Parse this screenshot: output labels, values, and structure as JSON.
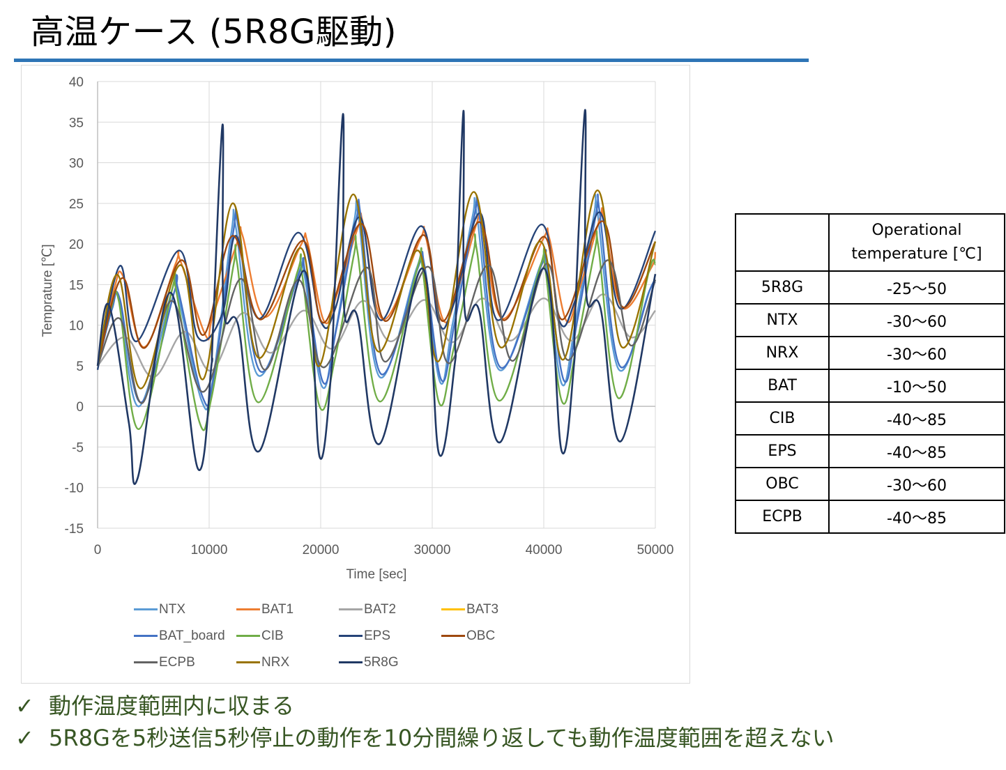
{
  "slide": {
    "title": "高温ケース (5R8G駆動)"
  },
  "chart_data": {
    "type": "line",
    "title": "",
    "xlabel": "Time [sec]",
    "ylabel": "Temprature [℃]",
    "xlim": [
      0,
      50000
    ],
    "ylim": [
      -15,
      40
    ],
    "x_ticks": [
      0,
      10000,
      20000,
      30000,
      40000,
      50000
    ],
    "y_ticks": [
      -15,
      -10,
      -5,
      0,
      5,
      10,
      15,
      20,
      25,
      30,
      35,
      40
    ],
    "grid": true,
    "legend_position": "bottom",
    "series": [
      {
        "name": "NTX",
        "color": "#5b9bd5",
        "x": [
          0,
          1100,
          1900,
          3700,
          6700,
          7100,
          9300,
          10300,
          12000,
          12400,
          14400,
          18000,
          18500,
          20100,
          21300,
          23000,
          23400,
          25300,
          28600,
          29200,
          30700,
          31800,
          33600,
          34000,
          36000,
          39700,
          40200,
          41600,
          42800,
          44500,
          44800,
          46700,
          49400,
          50000
        ],
        "y": [
          5,
          12,
          13.2,
          0,
          14.5,
          14.4,
          0.8,
          3,
          21.5,
          22,
          3.8,
          16.4,
          16.5,
          2.5,
          9,
          22.8,
          23.2,
          3.6,
          17,
          17.5,
          3,
          10,
          23.3,
          23.6,
          4.5,
          17.4,
          17.5,
          2.8,
          10,
          23.6,
          24,
          4.6,
          14,
          15.5
        ]
      },
      {
        "name": "BAT1",
        "color": "#ed7d31",
        "x": [
          0,
          1500,
          2300,
          4200,
          7000,
          7400,
          9700,
          10300,
          12600,
          13000,
          15000,
          18200,
          18800,
          20300,
          21500,
          23400,
          23800,
          25600,
          28900,
          29400,
          31000,
          32300,
          34000,
          34500,
          36300,
          39900,
          40500,
          42000,
          43200,
          45000,
          45400,
          47000,
          49600,
          50000
        ],
        "y": [
          5,
          14.5,
          16,
          7.3,
          17.6,
          18,
          8.7,
          11,
          20.5,
          21,
          11,
          19.8,
          20.3,
          10.5,
          14,
          22.3,
          22.5,
          10.7,
          20.5,
          21,
          10.6,
          14.5,
          22.6,
          22.8,
          10.8,
          20.5,
          20.7,
          10.6,
          14.5,
          23,
          23.2,
          12.2,
          17,
          19
        ]
      },
      {
        "name": "BAT2",
        "color": "#a5a5a5",
        "x": [
          0,
          2500,
          5000,
          7800,
          10200,
          13000,
          15500,
          18500,
          21000,
          23800,
          26300,
          29300,
          31800,
          34500,
          37000,
          40000,
          42500,
          45300,
          47800,
          50000
        ],
        "y": [
          5,
          8.5,
          3.6,
          9.2,
          4.4,
          11.5,
          6.6,
          11.8,
          7.1,
          13,
          8,
          13.1,
          7.9,
          13.3,
          8.1,
          13.3,
          8.1,
          13.8,
          8.5,
          11.8
        ]
      },
      {
        "name": "BAT3",
        "color": "#ffc000",
        "x": [
          0,
          50000
        ],
        "y": [
          null,
          null
        ]
      },
      {
        "name": "BAT_board",
        "color": "#4472c4",
        "x": [
          0,
          1300,
          2000,
          3900,
          6900,
          7200,
          9400,
          10400,
          12200,
          12600,
          14600,
          18100,
          18600,
          20200,
          21400,
          23200,
          23600,
          25400,
          28700,
          29300,
          30800,
          32000,
          33800,
          34200,
          36100,
          39800,
          40300,
          41800,
          43000,
          44700,
          45000,
          46800,
          49500,
          50000
        ],
        "y": [
          5,
          12,
          13.2,
          0.5,
          14.2,
          14.5,
          1.2,
          3.5,
          21.8,
          22.2,
          4.3,
          16.5,
          16.6,
          3,
          9.5,
          23,
          23.4,
          4,
          17,
          17.4,
          3.3,
          10.2,
          23.6,
          23.8,
          4.8,
          17.4,
          17.5,
          3.2,
          10.5,
          23.8,
          24,
          5,
          14.3,
          15.3
        ]
      },
      {
        "name": "CIB",
        "color": "#70ad47",
        "x": [
          0,
          1200,
          1900,
          3700,
          6700,
          7000,
          9100,
          10200,
          12200,
          12500,
          14400,
          17900,
          18300,
          19900,
          21300,
          23000,
          23300,
          25300,
          28700,
          29100,
          30600,
          31900,
          33700,
          34000,
          36000,
          39700,
          40100,
          41600,
          42900,
          44600,
          44900,
          46700,
          49400,
          50000
        ],
        "y": [
          5,
          12,
          13,
          -2.8,
          14.5,
          14.6,
          -1.8,
          1,
          17.5,
          17.7,
          0.5,
          16.5,
          16.6,
          0,
          6,
          18.8,
          19,
          0.6,
          17.2,
          17.3,
          0.5,
          7,
          19,
          19.2,
          0.7,
          17.3,
          17.4,
          0.7,
          7.2,
          19.4,
          19.6,
          1,
          16.5,
          17.5
        ]
      },
      {
        "name": "EPS",
        "color": "#264478",
        "x": [
          0,
          2000,
          3500,
          7300,
          9000,
          11200,
          12400,
          14500,
          18000,
          20000,
          21300,
          23500,
          25400,
          29000,
          30600,
          31900,
          34300,
          35900,
          39800,
          41400,
          42800,
          45000,
          46900,
          50000
        ],
        "y": [
          4.5,
          17.3,
          8,
          19.2,
          8.5,
          11.5,
          21,
          10.8,
          21.4,
          10.5,
          12,
          23.3,
          10.6,
          22.2,
          10.3,
          12.5,
          23.8,
          10.6,
          22.4,
          10.5,
          13,
          23.9,
          12,
          21.6
        ]
      },
      {
        "name": "OBC",
        "color": "#9e480e",
        "x": [
          0,
          2200,
          4200,
          7500,
          9500,
          12100,
          14600,
          18400,
          20300,
          23600,
          25800,
          29200,
          31000,
          34200,
          36400,
          40000,
          41700,
          45200,
          47100,
          50000
        ],
        "y": [
          5,
          15.8,
          7.2,
          18,
          8.8,
          21,
          10.7,
          20.4,
          10.3,
          22.5,
          10.5,
          21.1,
          10.5,
          22.7,
          10.6,
          20.9,
          10.7,
          22.8,
          12.2,
          20.3
        ]
      },
      {
        "name": "ECPB",
        "color": "#636363",
        "x": [
          0,
          2000,
          4000,
          6600,
          9500,
          12800,
          15000,
          18000,
          20300,
          24100,
          25800,
          29600,
          31500,
          35000,
          37200,
          40300,
          42200,
          45700,
          47800,
          50000
        ],
        "y": [
          5,
          10.8,
          0.4,
          13,
          1.8,
          15.7,
          4.5,
          15.6,
          4.8,
          17.1,
          5.5,
          17.2,
          5.3,
          17.4,
          5.6,
          17.6,
          5.7,
          18,
          7.5,
          15.6
        ]
      },
      {
        "name": "NRX",
        "color": "#997300",
        "x": [
          0,
          1800,
          3900,
          7400,
          9500,
          12100,
          14400,
          18200,
          19900,
          22900,
          25100,
          28700,
          30600,
          33700,
          36100,
          39700,
          41800,
          44800,
          47000,
          50000
        ],
        "y": [
          5,
          16.2,
          2.2,
          17.4,
          3.4,
          25,
          6,
          19.5,
          5,
          26.1,
          6.8,
          19.2,
          5.6,
          26.4,
          7.3,
          20.3,
          5.8,
          26.6,
          7.3,
          20.3
        ]
      },
      {
        "name": "5R8G",
        "color": "#203864",
        "x": [
          0,
          1000,
          2800,
          3600,
          6500,
          9000,
          10200,
          10300,
          11200,
          11300,
          12600,
          14500,
          18500,
          19900,
          21000,
          21100,
          22000,
          22100,
          23300,
          25300,
          29100,
          30600,
          32000,
          32100,
          32800,
          32900,
          34200,
          36100,
          40000,
          41600,
          42700,
          42800,
          43700,
          43800,
          45100,
          46900,
          50000
        ],
        "y": [
          5,
          12.5,
          -2,
          -8.8,
          14,
          -7.7,
          5,
          8,
          34.7,
          12,
          10,
          -5.5,
          16.7,
          -6.2,
          5,
          9,
          36,
          12,
          11,
          -4.6,
          17,
          -5.8,
          5,
          10,
          36.4,
          12,
          11.8,
          -4.4,
          17,
          -5.5,
          5,
          11,
          36.5,
          14,
          12,
          -4.3,
          16.3
        ]
      }
    ]
  },
  "spec_table": {
    "header": [
      "",
      "Operational\ntemperature [℃]"
    ],
    "rows": [
      [
        "5R8G",
        "-25～50"
      ],
      [
        "NTX",
        "-30～60"
      ],
      [
        "NRX",
        "-30～60"
      ],
      [
        "BAT",
        "-10～50"
      ],
      [
        "CIB",
        "-40～85"
      ],
      [
        "EPS",
        "-40～85"
      ],
      [
        "OBC",
        "-30～60"
      ],
      [
        "ECPB",
        "-40～85"
      ]
    ]
  },
  "conclusions": [
    "動作温度範囲内に収まる",
    "5R8Gを5秒送信5秒停止の動作を10分間繰り返しても動作温度範囲を超えない"
  ]
}
